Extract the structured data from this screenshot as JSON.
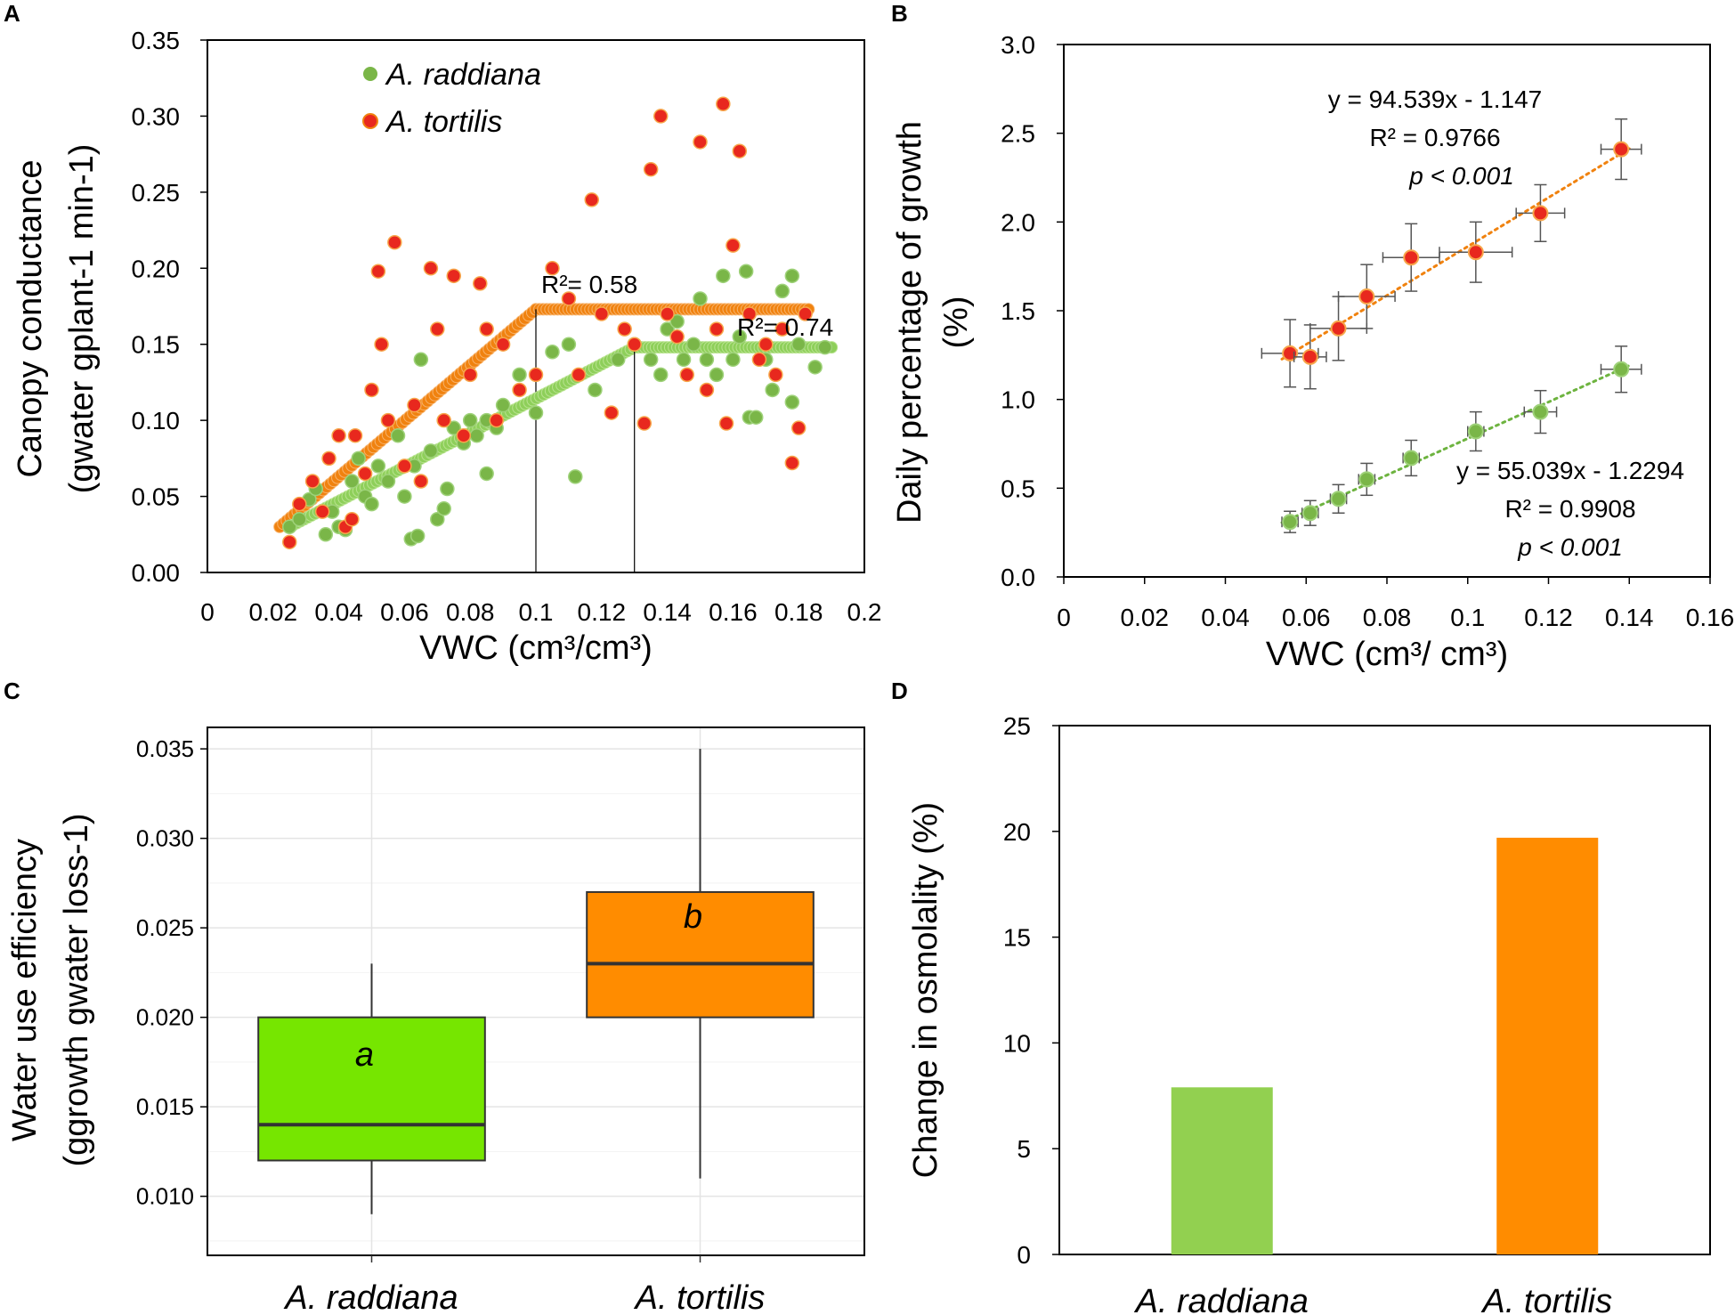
{
  "figure": {
    "panel_labels": [
      "A",
      "B",
      "C",
      "D"
    ]
  },
  "chart_data": [
    {
      "panel": "A",
      "type": "scatter",
      "xlabel": "VWC (cm³/cm³)",
      "ylabel": "Canopy conductance",
      "ylabel_units": "(gwater gplant-1 min-1)",
      "xlim": [
        0,
        0.2
      ],
      "ylim": [
        0,
        0.35
      ],
      "xticks": [
        "0",
        "0.02",
        "0.04",
        "0.06",
        "0.08",
        "0.1",
        "0.12",
        "0.14",
        "0.16",
        "0.18",
        "0.2"
      ],
      "yticks": [
        "0.00",
        "0.05",
        "0.10",
        "0.15",
        "0.20",
        "0.25",
        "0.30",
        "0.35"
      ],
      "legend": [
        "A. raddiana",
        "A. tortilis"
      ],
      "legend_position": "top-left",
      "annotations": [
        "R²= 0.58",
        "R²= 0.74"
      ],
      "series": [
        {
          "name": "A. raddiana",
          "color": "#7ab648",
          "points": [
            [
              0.025,
              0.03
            ],
            [
              0.028,
              0.035
            ],
            [
              0.031,
              0.048
            ],
            [
              0.033,
              0.055
            ],
            [
              0.036,
              0.025
            ],
            [
              0.038,
              0.04
            ],
            [
              0.04,
              0.03
            ],
            [
              0.042,
              0.028
            ],
            [
              0.044,
              0.06
            ],
            [
              0.046,
              0.075
            ],
            [
              0.048,
              0.05
            ],
            [
              0.05,
              0.045
            ],
            [
              0.052,
              0.07
            ],
            [
              0.055,
              0.06
            ],
            [
              0.058,
              0.09
            ],
            [
              0.06,
              0.05
            ],
            [
              0.062,
              0.022
            ],
            [
              0.063,
              0.07
            ],
            [
              0.064,
              0.024
            ],
            [
              0.065,
              0.14
            ],
            [
              0.068,
              0.08
            ],
            [
              0.07,
              0.035
            ],
            [
              0.072,
              0.042
            ],
            [
              0.073,
              0.055
            ],
            [
              0.075,
              0.095
            ],
            [
              0.078,
              0.085
            ],
            [
              0.08,
              0.1
            ],
            [
              0.082,
              0.09
            ],
            [
              0.085,
              0.1
            ],
            [
              0.085,
              0.065
            ],
            [
              0.088,
              0.095
            ],
            [
              0.09,
              0.11
            ],
            [
              0.095,
              0.13
            ],
            [
              0.1,
              0.105
            ],
            [
              0.105,
              0.145
            ],
            [
              0.11,
              0.15
            ],
            [
              0.112,
              0.063
            ],
            [
              0.118,
              0.12
            ],
            [
              0.125,
              0.14
            ],
            [
              0.13,
              0.15
            ],
            [
              0.135,
              0.14
            ],
            [
              0.138,
              0.13
            ],
            [
              0.14,
              0.16
            ],
            [
              0.143,
              0.165
            ],
            [
              0.145,
              0.14
            ],
            [
              0.148,
              0.15
            ],
            [
              0.15,
              0.18
            ],
            [
              0.152,
              0.14
            ],
            [
              0.155,
              0.13
            ],
            [
              0.157,
              0.195
            ],
            [
              0.16,
              0.14
            ],
            [
              0.162,
              0.155
            ],
            [
              0.164,
              0.198
            ],
            [
              0.165,
              0.102
            ],
            [
              0.167,
              0.102
            ],
            [
              0.17,
              0.14
            ],
            [
              0.172,
              0.12
            ],
            [
              0.175,
              0.185
            ],
            [
              0.178,
              0.112
            ],
            [
              0.178,
              0.195
            ],
            [
              0.18,
              0.15
            ],
            [
              0.185,
              0.135
            ],
            [
              0.188,
              0.148
            ]
          ]
        },
        {
          "name": "A. tortilis",
          "color": "#e8281e",
          "points": [
            [
              0.025,
              0.02
            ],
            [
              0.028,
              0.045
            ],
            [
              0.032,
              0.06
            ],
            [
              0.035,
              0.04
            ],
            [
              0.037,
              0.075
            ],
            [
              0.04,
              0.09
            ],
            [
              0.042,
              0.03
            ],
            [
              0.044,
              0.035
            ],
            [
              0.045,
              0.09
            ],
            [
              0.048,
              0.065
            ],
            [
              0.05,
              0.12
            ],
            [
              0.052,
              0.198
            ],
            [
              0.053,
              0.15
            ],
            [
              0.055,
              0.1
            ],
            [
              0.057,
              0.217
            ],
            [
              0.06,
              0.07
            ],
            [
              0.063,
              0.11
            ],
            [
              0.065,
              0.06
            ],
            [
              0.068,
              0.2
            ],
            [
              0.07,
              0.16
            ],
            [
              0.072,
              0.1
            ],
            [
              0.075,
              0.195
            ],
            [
              0.078,
              0.09
            ],
            [
              0.08,
              0.13
            ],
            [
              0.083,
              0.19
            ],
            [
              0.085,
              0.16
            ],
            [
              0.088,
              0.1
            ],
            [
              0.09,
              0.15
            ],
            [
              0.095,
              0.12
            ],
            [
              0.1,
              0.13
            ],
            [
              0.105,
              0.2
            ],
            [
              0.11,
              0.18
            ],
            [
              0.113,
              0.13
            ],
            [
              0.117,
              0.245
            ],
            [
              0.12,
              0.17
            ],
            [
              0.123,
              0.105
            ],
            [
              0.127,
              0.16
            ],
            [
              0.13,
              0.15
            ],
            [
              0.133,
              0.098
            ],
            [
              0.135,
              0.265
            ],
            [
              0.138,
              0.3
            ],
            [
              0.14,
              0.17
            ],
            [
              0.143,
              0.155
            ],
            [
              0.146,
              0.13
            ],
            [
              0.15,
              0.283
            ],
            [
              0.152,
              0.12
            ],
            [
              0.155,
              0.16
            ],
            [
              0.157,
              0.308
            ],
            [
              0.158,
              0.098
            ],
            [
              0.16,
              0.215
            ],
            [
              0.162,
              0.277
            ],
            [
              0.165,
              0.17
            ],
            [
              0.168,
              0.14
            ],
            [
              0.17,
              0.15
            ],
            [
              0.173,
              0.13
            ],
            [
              0.175,
              0.16
            ],
            [
              0.178,
              0.072
            ],
            [
              0.18,
              0.095
            ],
            [
              0.182,
              0.17
            ]
          ]
        }
      ],
      "fits": [
        {
          "name": "A. tortilis",
          "color": "#f0820f",
          "x": [
            0.022,
            0.1,
            0.183
          ],
          "y": [
            0.03,
            0.173,
            0.173
          ],
          "breakpoint": 0.1
        },
        {
          "name": "A. raddiana",
          "color": "#8ecf5a",
          "x": [
            0.025,
            0.13,
            0.19
          ],
          "y": [
            0.03,
            0.148,
            0.148
          ],
          "breakpoint": 0.13
        }
      ]
    },
    {
      "panel": "B",
      "type": "scatter",
      "xlabel": "VWC (cm³/ cm³)",
      "ylabel": "Daily percentage of growth",
      "ylabel_units": "(%)",
      "xlim": [
        0,
        0.16
      ],
      "ylim": [
        0,
        3.0
      ],
      "xticks": [
        "0",
        "0.02",
        "0.04",
        "0.06",
        "0.08",
        "0.1",
        "0.12",
        "0.14",
        "0.16"
      ],
      "yticks": [
        "0.0",
        "0.5",
        "1.0",
        "1.5",
        "2.0",
        "2.5",
        "3.0"
      ],
      "series": [
        {
          "name": "A. tortilis",
          "color": "#e8281e",
          "x": [
            0.056,
            0.061,
            0.068,
            0.075,
            0.086,
            0.102,
            0.118,
            0.138
          ],
          "y": [
            1.26,
            1.24,
            1.4,
            1.58,
            1.8,
            1.83,
            2.05,
            2.41
          ],
          "xerr": [
            0.007,
            0.004,
            0.007,
            0.007,
            0.007,
            0.009,
            0.006,
            0.005
          ],
          "yerr": [
            0.19,
            0.18,
            0.18,
            0.18,
            0.19,
            0.17,
            0.16,
            0.17
          ],
          "equation": "y = 94.539x - 1.147",
          "r2": "R² = 0.9766",
          "p": "p < 0.001"
        },
        {
          "name": "A. raddiana",
          "color": "#7ab648",
          "x": [
            0.056,
            0.061,
            0.068,
            0.075,
            0.086,
            0.102,
            0.118,
            0.138
          ],
          "y": [
            0.31,
            0.36,
            0.44,
            0.55,
            0.67,
            0.82,
            0.93,
            1.17
          ],
          "xerr": [
            0.002,
            0.002,
            0.002,
            0.002,
            0.002,
            0.002,
            0.004,
            0.005
          ],
          "yerr": [
            0.06,
            0.07,
            0.08,
            0.09,
            0.1,
            0.11,
            0.12,
            0.13
          ],
          "equation": "y = 55.039x - 1.2294",
          "r2": "R² = 0.9908",
          "p": "p < 0.001"
        }
      ]
    },
    {
      "panel": "C",
      "type": "box",
      "ylabel": "Water use efficiency",
      "ylabel_units": "(ggrowth gwater loss-1)",
      "categories": [
        "A. raddiana",
        "A. tortilis"
      ],
      "ylim": [
        0.0067,
        0.0362
      ],
      "yticks": [
        "0.010",
        "0.015",
        "0.020",
        "0.025",
        "0.030",
        "0.035"
      ],
      "boxes": [
        {
          "name": "A. raddiana",
          "min": 0.009,
          "q1": 0.012,
          "median": 0.014,
          "q3": 0.02,
          "max": 0.023,
          "letter": "a",
          "color": "#76e600"
        },
        {
          "name": "A. tortilis",
          "min": 0.011,
          "q1": 0.02,
          "median": 0.023,
          "q3": 0.027,
          "max": 0.035,
          "letter": "b",
          "color": "#ff8c00"
        }
      ]
    },
    {
      "panel": "D",
      "type": "bar",
      "ylabel": "Change in osmolality (%)",
      "categories": [
        "A. raddiana",
        "A. tortilis"
      ],
      "values": [
        7.9,
        19.7
      ],
      "colors": [
        "#92d050",
        "#ff8c00"
      ],
      "ylim": [
        0,
        25
      ],
      "yticks": [
        "0",
        "5",
        "10",
        "15",
        "20",
        "25"
      ]
    }
  ]
}
